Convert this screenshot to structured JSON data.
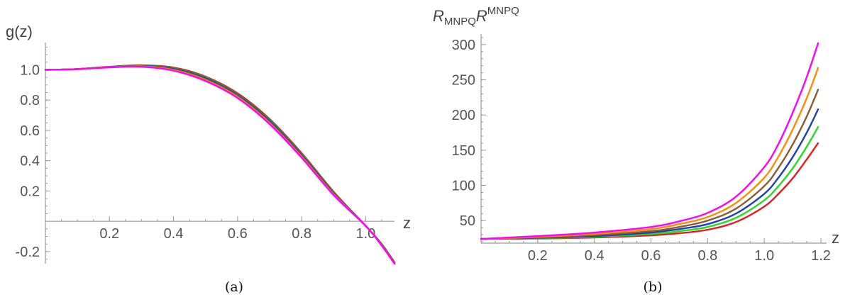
{
  "chart_data": [
    {
      "type": "line",
      "caption": "(a)",
      "ylabel": "g(z)",
      "xlabel": "z",
      "xlim": [
        0,
        1.09
      ],
      "ylim": [
        -0.28,
        1.18
      ],
      "xticks": [
        0.2,
        0.4,
        0.6,
        0.8,
        1.0
      ],
      "xtick_labels": [
        "0.2",
        "0.4",
        "0.6",
        "0.8",
        "1.0"
      ],
      "yticks": [
        -0.2,
        0.2,
        0.4,
        0.6,
        0.8,
        1.0
      ],
      "ytick_labels": [
        "-0.2",
        "0.2",
        "0.4",
        "0.6",
        "0.8",
        "1.0"
      ],
      "grid": false,
      "series": [
        {
          "color": "#e41a1c",
          "x": [
            0,
            0.1,
            0.2,
            0.3,
            0.4,
            0.5,
            0.6,
            0.7,
            0.8,
            0.9,
            1.0,
            1.05,
            1.09
          ],
          "y": [
            1.0,
            1.005,
            1.02,
            1.03,
            1.015,
            0.955,
            0.845,
            0.675,
            0.45,
            0.195,
            -0.03,
            -0.15,
            -0.27
          ]
        },
        {
          "color": "#2ca02c",
          "x": [
            0,
            0.1,
            0.2,
            0.3,
            0.4,
            0.5,
            0.6,
            0.7,
            0.8,
            0.9,
            1.0,
            1.05,
            1.09
          ],
          "y": [
            1.0,
            1.005,
            1.02,
            1.028,
            1.01,
            0.95,
            0.838,
            0.668,
            0.443,
            0.19,
            -0.03,
            -0.152,
            -0.272
          ]
        },
        {
          "color": "#1f3cc4",
          "x": [
            0,
            0.1,
            0.2,
            0.3,
            0.4,
            0.5,
            0.6,
            0.7,
            0.8,
            0.9,
            1.0,
            1.05,
            1.09
          ],
          "y": [
            1.0,
            1.005,
            1.019,
            1.026,
            1.006,
            0.944,
            0.832,
            0.661,
            0.437,
            0.185,
            -0.03,
            -0.154,
            -0.274
          ]
        },
        {
          "color": "#8c5a32",
          "x": [
            0,
            0.1,
            0.2,
            0.3,
            0.4,
            0.5,
            0.6,
            0.7,
            0.8,
            0.9,
            1.0,
            1.05,
            1.09
          ],
          "y": [
            1.0,
            1.004,
            1.018,
            1.024,
            1.002,
            0.938,
            0.826,
            0.654,
            0.431,
            0.181,
            -0.03,
            -0.156,
            -0.276
          ]
        },
        {
          "color": "#ff8c00",
          "x": [
            0,
            0.1,
            0.2,
            0.3,
            0.4,
            0.5,
            0.6,
            0.7,
            0.8,
            0.9,
            1.0,
            1.05,
            1.09
          ],
          "y": [
            1.0,
            1.004,
            1.017,
            1.022,
            0.998,
            0.932,
            0.82,
            0.648,
            0.425,
            0.177,
            -0.03,
            -0.158,
            -0.278
          ]
        },
        {
          "color": "#ff00ff",
          "x": [
            0,
            0.1,
            0.2,
            0.3,
            0.4,
            0.5,
            0.6,
            0.7,
            0.8,
            0.9,
            1.0,
            1.05,
            1.09
          ],
          "y": [
            1.0,
            1.004,
            1.016,
            1.02,
            0.994,
            0.926,
            0.814,
            0.642,
            0.42,
            0.173,
            -0.03,
            -0.16,
            -0.28
          ]
        }
      ]
    },
    {
      "type": "line",
      "caption": "(b)",
      "ylabel_main": "R",
      "ylabel_sub": "MNPQ",
      "ylabel_main2": "R",
      "ylabel_sup": "MNPQ",
      "xlabel": "z",
      "xlim": [
        0,
        1.22
      ],
      "ylim": [
        18,
        315
      ],
      "xticks": [
        0.2,
        0.4,
        0.6,
        0.8,
        1.0,
        1.2
      ],
      "xtick_labels": [
        "0.2",
        "0.4",
        "0.6",
        "0.8",
        "1.0",
        "1.2"
      ],
      "yticks": [
        50,
        100,
        150,
        200,
        250,
        300
      ],
      "ytick_labels": [
        "50",
        "100",
        "150",
        "200",
        "250",
        "300"
      ],
      "grid": false,
      "series": [
        {
          "color": "#e41a1c",
          "x": [
            0,
            0.2,
            0.4,
            0.6,
            0.7,
            0.8,
            0.9,
            1.0,
            1.05,
            1.1,
            1.15,
            1.19
          ],
          "y": [
            24,
            24.5,
            26,
            29,
            32,
            37,
            48,
            70,
            88,
            110,
            137,
            160
          ]
        },
        {
          "color": "#22dd22",
          "x": [
            0,
            0.2,
            0.4,
            0.6,
            0.7,
            0.8,
            0.9,
            1.0,
            1.05,
            1.1,
            1.15,
            1.19
          ],
          "y": [
            24,
            25,
            27,
            31,
            35,
            41,
            54,
            79,
            99,
            124,
            155,
            183
          ]
        },
        {
          "color": "#1f3cc4",
          "x": [
            0,
            0.2,
            0.4,
            0.6,
            0.7,
            0.8,
            0.9,
            1.0,
            1.05,
            1.1,
            1.15,
            1.19
          ],
          "y": [
            24,
            25.5,
            28,
            33,
            38,
            45,
            60,
            88,
            111,
            140,
            175,
            208
          ]
        },
        {
          "color": "#8c5a32",
          "x": [
            0,
            0.2,
            0.4,
            0.6,
            0.7,
            0.8,
            0.9,
            1.0,
            1.05,
            1.1,
            1.15,
            1.19
          ],
          "y": [
            24,
            26,
            29.5,
            35,
            41,
            50,
            67,
            99,
            125,
            158,
            198,
            236
          ]
        },
        {
          "color": "#ff8c00",
          "x": [
            0,
            0.2,
            0.4,
            0.6,
            0.7,
            0.8,
            0.9,
            1.0,
            1.05,
            1.1,
            1.15,
            1.19
          ],
          "y": [
            24,
            27,
            31,
            38,
            45,
            55,
            75,
            111,
            141,
            179,
            224,
            267
          ]
        },
        {
          "color": "#ff00ff",
          "x": [
            0,
            0.2,
            0.4,
            0.6,
            0.7,
            0.8,
            0.9,
            1.0,
            1.05,
            1.1,
            1.15,
            1.19
          ],
          "y": [
            24,
            28,
            33,
            41,
            49,
            61,
            84,
            126,
            159,
            203,
            254,
            302
          ]
        }
      ]
    }
  ]
}
